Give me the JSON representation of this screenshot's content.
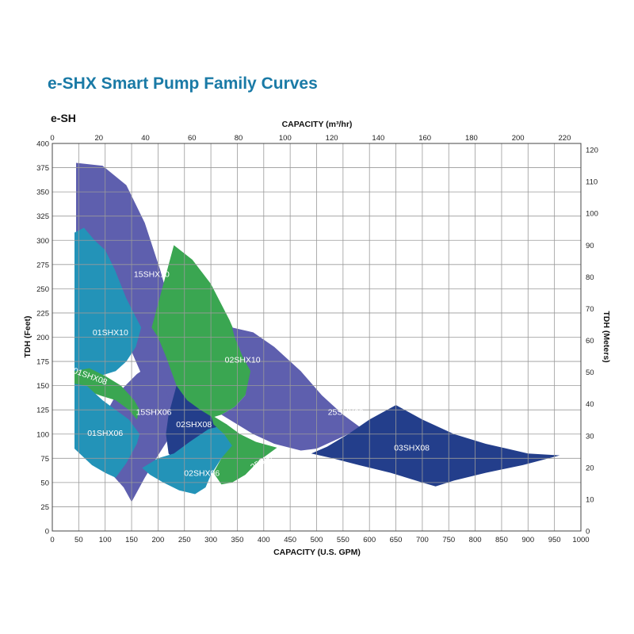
{
  "title": "e-SHX Smart Pump Family Curves",
  "subtitle": "e-SH",
  "chart_data": {
    "type": "area",
    "title": "e-SHX Smart Pump Family Curves",
    "xlabel": "CAPACITY (U.S. GPM)",
    "x2label": "CAPACITY (m³/hr)",
    "ylabel": "TDH (Feet)",
    "y2label": "TDH (Meters)",
    "xlim": [
      0,
      1000
    ],
    "ylim": [
      0,
      400
    ],
    "x2lim": [
      0,
      227
    ],
    "y2lim": [
      0,
      122
    ],
    "xticks": [
      0,
      50,
      100,
      150,
      200,
      250,
      300,
      350,
      400,
      450,
      500,
      550,
      600,
      650,
      700,
      750,
      800,
      850,
      900,
      950,
      1000
    ],
    "yticks": [
      0,
      25,
      50,
      75,
      100,
      125,
      150,
      175,
      200,
      225,
      250,
      275,
      300,
      325,
      350,
      375,
      400
    ],
    "x2ticks": [
      0,
      20,
      40,
      60,
      80,
      100,
      120,
      140,
      160,
      180,
      200,
      220
    ],
    "y2ticks": [
      0,
      10,
      20,
      30,
      40,
      50,
      60,
      70,
      80,
      90,
      100,
      110,
      120
    ],
    "grid": true,
    "colors": {
      "violet": "#5e5fae",
      "green": "#3aa651",
      "cyan": "#2393b8",
      "navy": "#233e8b",
      "grid": "#9a9a9a",
      "title": "#1a7aa6"
    },
    "series": [
      {
        "name": "15SHX10",
        "color": "violet",
        "label_at": [
          188,
          262
        ],
        "label_rotation": 0,
        "points": [
          [
            45,
            380
          ],
          [
            95,
            377
          ],
          [
            140,
            357
          ],
          [
            175,
            318
          ],
          [
            205,
            268
          ],
          [
            228,
            222
          ],
          [
            250,
            170
          ],
          [
            260,
            130
          ],
          [
            250,
            118
          ],
          [
            225,
            112
          ],
          [
            200,
            120
          ],
          [
            185,
            140
          ],
          [
            170,
            160
          ],
          [
            150,
            185
          ],
          [
            110,
            220
          ],
          [
            80,
            240
          ],
          [
            60,
            250
          ],
          [
            45,
            260
          ]
        ]
      },
      {
        "name": "02SHX10",
        "color": "green",
        "label_at": [
          360,
          174
        ],
        "label_rotation": 0,
        "points": [
          [
            230,
            295
          ],
          [
            265,
            280
          ],
          [
            300,
            255
          ],
          [
            335,
            218
          ],
          [
            365,
            180
          ],
          [
            380,
            165
          ],
          [
            365,
            140
          ],
          [
            345,
            128
          ],
          [
            320,
            120
          ],
          [
            290,
            115
          ],
          [
            270,
            118
          ],
          [
            235,
            150
          ],
          [
            215,
            180
          ],
          [
            200,
            200
          ],
          [
            188,
            210
          ]
        ]
      },
      {
        "name": "25SHX08",
        "color": "violet",
        "label_at": [
          555,
          120
        ],
        "label_rotation": 0,
        "points": [
          [
            340,
            210
          ],
          [
            380,
            205
          ],
          [
            420,
            190
          ],
          [
            470,
            165
          ],
          [
            510,
            140
          ],
          [
            550,
            120
          ],
          [
            600,
            100
          ],
          [
            655,
            125
          ],
          [
            560,
            100
          ],
          [
            500,
            85
          ],
          [
            470,
            83
          ],
          [
            420,
            90
          ],
          [
            380,
            100
          ],
          [
            350,
            110
          ],
          [
            320,
            120
          ],
          [
            345,
            128
          ],
          [
            365,
            140
          ],
          [
            375,
            165
          ],
          [
            360,
            180
          ],
          [
            345,
            200
          ]
        ]
      },
      {
        "name": "03SHX08",
        "color": "navy",
        "label_at": [
          680,
          83
        ],
        "label_rotation": 0,
        "points": [
          [
            650,
            130
          ],
          [
            700,
            115
          ],
          [
            760,
            100
          ],
          [
            820,
            90
          ],
          [
            900,
            80
          ],
          [
            960,
            78
          ],
          [
            890,
            68
          ],
          [
            820,
            60
          ],
          [
            760,
            52
          ],
          [
            725,
            46
          ],
          [
            700,
            50
          ],
          [
            640,
            60
          ],
          [
            580,
            68
          ],
          [
            530,
            75
          ],
          [
            490,
            80
          ],
          [
            520,
            87
          ],
          [
            560,
            100
          ],
          [
            600,
            115
          ]
        ]
      },
      {
        "name": "15SHX06",
        "color": "violet",
        "label_at": [
          192,
          120
        ],
        "label_rotation": 0,
        "points": [
          [
            120,
            140
          ],
          [
            160,
            162
          ],
          [
            195,
            175
          ],
          [
            220,
            138
          ],
          [
            235,
            108
          ],
          [
            200,
            78
          ],
          [
            175,
            55
          ],
          [
            150,
            30
          ],
          [
            135,
            45
          ],
          [
            110,
            60
          ],
          [
            85,
            78
          ],
          [
            80,
            100
          ],
          [
            100,
            120
          ]
        ]
      },
      {
        "name": "02SHX08",
        "color": "navy",
        "label_at": [
          268,
          107
        ],
        "label_rotation": 0,
        "points": [
          [
            235,
            150
          ],
          [
            255,
            135
          ],
          [
            280,
            125
          ],
          [
            310,
            115
          ],
          [
            330,
            110
          ],
          [
            300,
            100
          ],
          [
            280,
            90
          ],
          [
            265,
            80
          ],
          [
            250,
            70
          ],
          [
            235,
            70
          ],
          [
            220,
            80
          ],
          [
            215,
            100
          ],
          [
            220,
            120
          ]
        ]
      },
      {
        "name": "02SHX06",
        "color": "cyan",
        "label_at": [
          283,
          57
        ],
        "label_rotation": 0,
        "points": [
          [
            170,
            65
          ],
          [
            200,
            75
          ],
          [
            230,
            80
          ],
          [
            260,
            92
          ],
          [
            295,
            105
          ],
          [
            330,
            110
          ],
          [
            355,
            95
          ],
          [
            345,
            82
          ],
          [
            320,
            75
          ],
          [
            300,
            58
          ],
          [
            290,
            45
          ],
          [
            270,
            38
          ],
          [
            240,
            42
          ],
          [
            210,
            50
          ],
          [
            185,
            58
          ]
        ]
      },
      {
        "name": "25SHX06",
        "color": "green",
        "label_at": [
          408,
          72
        ],
        "label_rotation": -30,
        "points": [
          [
            300,
            120
          ],
          [
            330,
            110
          ],
          [
            355,
            100
          ],
          [
            385,
            92
          ],
          [
            425,
            86
          ],
          [
            390,
            72
          ],
          [
            365,
            58
          ],
          [
            340,
            50
          ],
          [
            320,
            48
          ],
          [
            305,
            60
          ],
          [
            320,
            75
          ],
          [
            340,
            88
          ],
          [
            325,
            100
          ],
          [
            305,
            110
          ]
        ]
      },
      {
        "name": "01SHX10",
        "color": "cyan",
        "label_at": [
          110,
          202
        ],
        "label_rotation": 0,
        "points": [
          [
            42,
            308
          ],
          [
            60,
            313
          ],
          [
            80,
            300
          ],
          [
            100,
            290
          ],
          [
            118,
            270
          ],
          [
            140,
            240
          ],
          [
            168,
            210
          ],
          [
            158,
            190
          ],
          [
            140,
            175
          ],
          [
            120,
            165
          ],
          [
            90,
            160
          ],
          [
            65,
            158
          ],
          [
            42,
            157
          ]
        ]
      },
      {
        "name": "01SHX08",
        "color": "green",
        "label_at": [
          70,
          157
        ],
        "label_rotation": 20,
        "points": [
          [
            42,
            165
          ],
          [
            70,
            168
          ],
          [
            100,
            160
          ],
          [
            130,
            150
          ],
          [
            155,
            135
          ],
          [
            165,
            125
          ],
          [
            160,
            115
          ],
          [
            145,
            125
          ],
          [
            120,
            135
          ],
          [
            90,
            140
          ],
          [
            65,
            145
          ],
          [
            42,
            147
          ]
        ]
      },
      {
        "name": "01SHX06",
        "color": "cyan",
        "label_at": [
          100,
          98
        ],
        "label_rotation": 0,
        "points": [
          [
            42,
            152
          ],
          [
            65,
            150
          ],
          [
            95,
            135
          ],
          [
            120,
            125
          ],
          [
            145,
            115
          ],
          [
            165,
            100
          ],
          [
            160,
            90
          ],
          [
            140,
            70
          ],
          [
            120,
            55
          ],
          [
            100,
            60
          ],
          [
            75,
            68
          ],
          [
            42,
            85
          ]
        ]
      }
    ]
  }
}
